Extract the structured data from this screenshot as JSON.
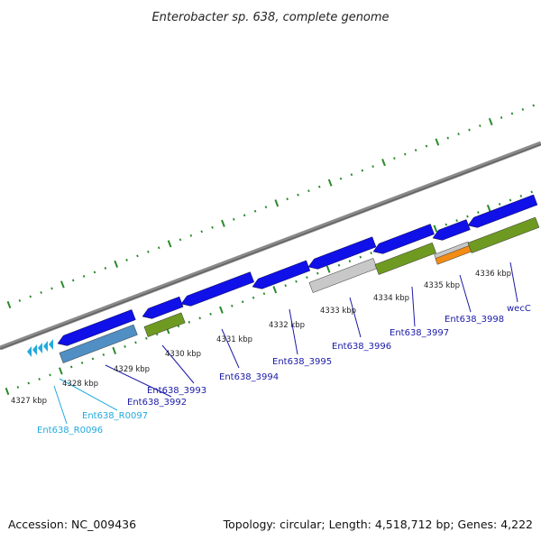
{
  "title": "Enterobacter sp. 638, complete genome",
  "footer": {
    "accession": "Accession: NC_009436",
    "summary": "Topology: circular; Length: 4,518,712 bp; Genes: 4,222"
  },
  "colors": {
    "cds": "#1010e8",
    "rrna": "#4f8fc4",
    "misc": "#6e9a22",
    "pseudo": "#c8c8c8",
    "orange": "#f28c14",
    "trna": "#22aadd",
    "backbone": "#8a8a8a",
    "ticks": "#2a8a2a",
    "label_dark": "#1a1aa8",
    "label_light": "#22aadd"
  },
  "kbp_labels": [
    "4327 kbp",
    "4328 kbp",
    "4329 kbp",
    "4330 kbp",
    "4331 kbp",
    "4332 kbp",
    "4333 kbp",
    "4334 kbp",
    "4335 kbp",
    "4336 kbp"
  ],
  "gene_labels": [
    {
      "text": "Ent638_R0096",
      "color": "light"
    },
    {
      "text": "Ent638_R0097",
      "color": "light"
    },
    {
      "text": "Ent638_3992",
      "color": "dark"
    },
    {
      "text": "Ent638_3993",
      "color": "dark"
    },
    {
      "text": "Ent638_3994",
      "color": "dark"
    },
    {
      "text": "Ent638_3995",
      "color": "dark"
    },
    {
      "text": "Ent638_3996",
      "color": "dark"
    },
    {
      "text": "Ent638_3997",
      "color": "dark"
    },
    {
      "text": "Ent638_3998",
      "color": "dark"
    },
    {
      "text": "wecC",
      "color": "dark"
    }
  ]
}
